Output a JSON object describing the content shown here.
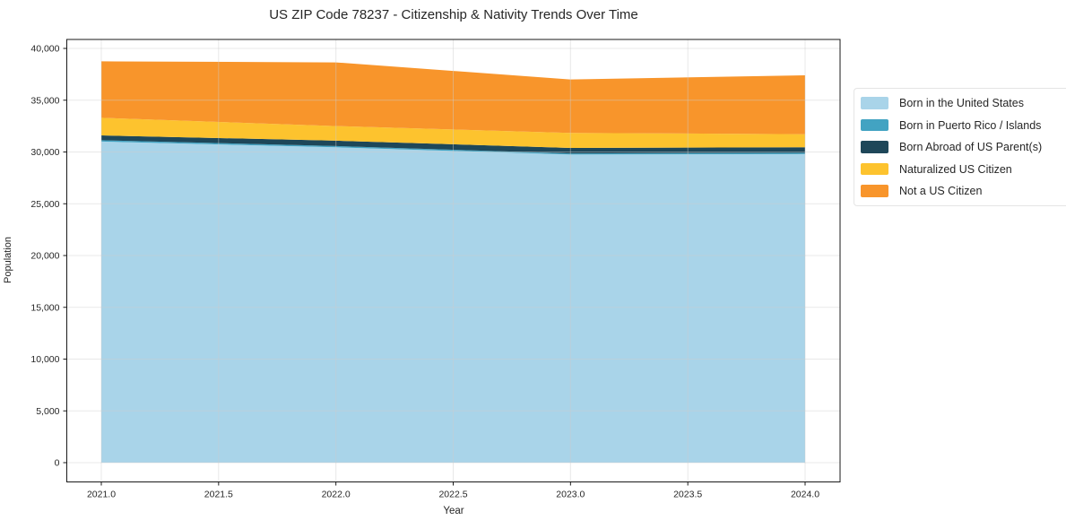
{
  "figure": {
    "background": "#ffffff"
  },
  "chart_data": {
    "type": "area",
    "stacked": true,
    "title": "US ZIP Code 78237 - Citizenship & Nativity Trends Over Time",
    "xlabel": "Year",
    "ylabel": "Population",
    "x": [
      2021,
      2022,
      2023,
      2024
    ],
    "series": [
      {
        "name": "Born in the United States",
        "color": "#a9d4e9",
        "values": [
          31000,
          30450,
          29750,
          29800
        ]
      },
      {
        "name": "Born in Puerto Rico / Islands",
        "color": "#42a3c2",
        "values": [
          130,
          120,
          110,
          110
        ]
      },
      {
        "name": "Born Abroad of US Parent(s)",
        "color": "#1e4759",
        "values": [
          470,
          520,
          530,
          550
        ]
      },
      {
        "name": "Naturalized US Citizen",
        "color": "#fdc32e",
        "values": [
          1700,
          1410,
          1450,
          1250
        ]
      },
      {
        "name": "Not a US Citizen",
        "color": "#f8952b",
        "values": [
          5450,
          6150,
          5160,
          5690
        ]
      }
    ],
    "totals": [
      38750,
      38650,
      37000,
      37400
    ],
    "xlim": [
      2020.85,
      2024.15
    ],
    "ylim": [
      0,
      40000
    ],
    "xticks": {
      "values": [
        2021.0,
        2021.5,
        2022.0,
        2022.5,
        2023.0,
        2023.5,
        2024.0
      ],
      "labels": [
        "2021.0",
        "2021.5",
        "2022.0",
        "2022.5",
        "2023.0",
        "2023.5",
        "2024.0"
      ]
    },
    "yticks": {
      "values": [
        0,
        5000,
        10000,
        15000,
        20000,
        25000,
        30000,
        35000,
        40000
      ],
      "labels": [
        "0",
        "5,000",
        "10,000",
        "15,000",
        "20,000",
        "25,000",
        "30,000",
        "35,000",
        "40,000"
      ]
    },
    "grid": true,
    "legend_position": "right"
  }
}
